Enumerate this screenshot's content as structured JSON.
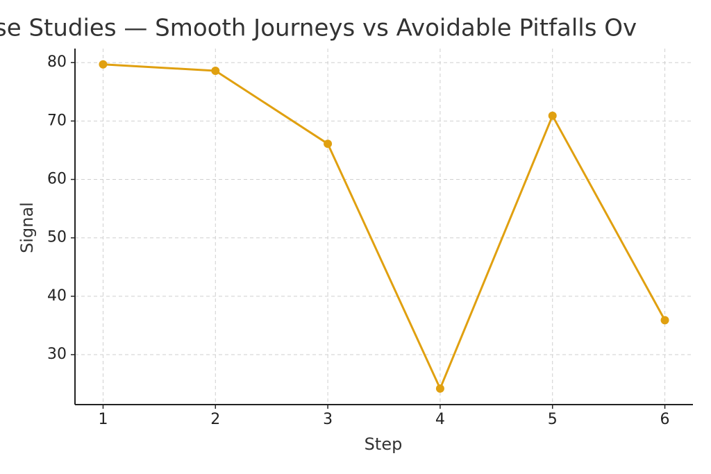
{
  "chart_data": {
    "type": "line",
    "title": "se Studies — Smooth Journeys vs Avoidable Pitfalls Ov",
    "x_label": "Step",
    "y_label": "Signal",
    "x": [
      1,
      2,
      3,
      4,
      5,
      6
    ],
    "series": [
      {
        "name": "Signal",
        "color": "#e0a010",
        "values": [
          79.7,
          78.6,
          66.1,
          24.2,
          70.9,
          35.9
        ]
      }
    ],
    "xlim": [
      0.75,
      6.25
    ],
    "xticks": [
      1,
      2,
      3,
      4,
      5,
      6
    ],
    "ylim": [
      21.45,
      82.4
    ],
    "yticks": [
      30,
      40,
      50,
      60,
      70,
      80
    ],
    "grid": true
  }
}
